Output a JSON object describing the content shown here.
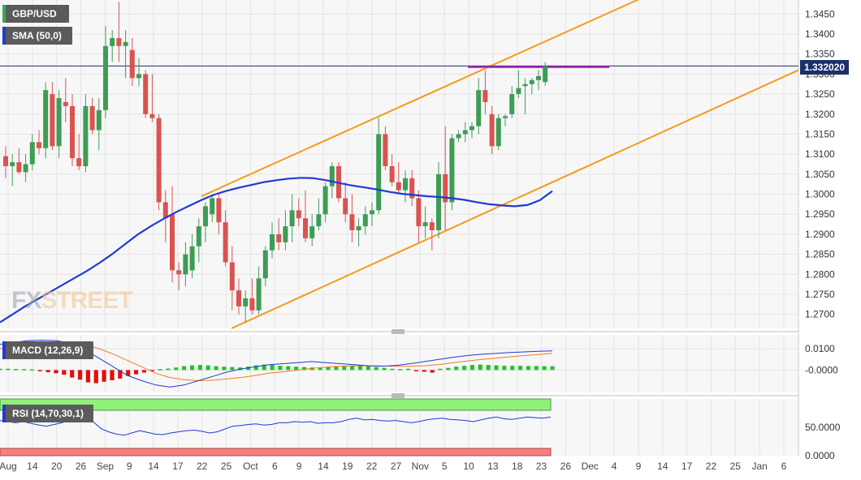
{
  "chart_data": {
    "type": "candlestick",
    "symbol": "GBP/USD",
    "indicators": {
      "sma_label": "SMA (50,0)",
      "macd_label": "MACD (12,26,9)",
      "rsi_label": "RSI (14,70,30,1)"
    },
    "last_price_label": "1.332020",
    "last_price": 1.33202,
    "price_axis": {
      "ylim": [
        1.2665,
        1.3485
      ],
      "ticks": [
        "1.3450",
        "1.3400",
        "1.3350",
        "1.3300",
        "1.3250",
        "1.3200",
        "1.3150",
        "1.3100",
        "1.3050",
        "1.3000",
        "1.2950",
        "1.2900",
        "1.2850",
        "1.2800",
        "1.2750",
        "1.2700"
      ]
    },
    "macd_axis": {
      "ticks": [
        "0.0100",
        "-0.0000"
      ]
    },
    "rsi_axis": {
      "ticks": [
        "50.0000",
        "0.0000"
      ]
    },
    "date_axis": {
      "labels": [
        "Aug",
        "14",
        "20",
        "26",
        "Sep",
        "9",
        "14",
        "17",
        "22",
        "25",
        "Oct",
        "6",
        "9",
        "14",
        "19",
        "22",
        "27",
        "Nov",
        "5",
        "10",
        "13",
        "18",
        "23",
        "26",
        "Dec",
        "4",
        "9",
        "14",
        "17",
        "22",
        "25",
        "Jan",
        "6"
      ]
    },
    "candles": [
      {
        "o": 1.3095,
        "h": 1.312,
        "l": 1.304,
        "c": 1.307
      },
      {
        "o": 1.307,
        "h": 1.31,
        "l": 1.302,
        "c": 1.308
      },
      {
        "o": 1.308,
        "h": 1.3115,
        "l": 1.305,
        "c": 1.3055
      },
      {
        "o": 1.3055,
        "h": 1.31,
        "l": 1.303,
        "c": 1.3075
      },
      {
        "o": 1.3075,
        "h": 1.315,
        "l": 1.306,
        "c": 1.313
      },
      {
        "o": 1.313,
        "h": 1.316,
        "l": 1.31,
        "c": 1.3115
      },
      {
        "o": 1.3115,
        "h": 1.328,
        "l": 1.309,
        "c": 1.326
      },
      {
        "o": 1.325,
        "h": 1.328,
        "l": 1.311,
        "c": 1.312
      },
      {
        "o": 1.312,
        "h": 1.326,
        "l": 1.309,
        "c": 1.324
      },
      {
        "o": 1.323,
        "h": 1.329,
        "l": 1.318,
        "c": 1.322
      },
      {
        "o": 1.322,
        "h": 1.325,
        "l": 1.307,
        "c": 1.309
      },
      {
        "o": 1.309,
        "h": 1.315,
        "l": 1.306,
        "c": 1.307
      },
      {
        "o": 1.307,
        "h": 1.325,
        "l": 1.3055,
        "c": 1.322
      },
      {
        "o": 1.322,
        "h": 1.324,
        "l": 1.315,
        "c": 1.316
      },
      {
        "o": 1.316,
        "h": 1.324,
        "l": 1.311,
        "c": 1.321
      },
      {
        "o": 1.321,
        "h": 1.342,
        "l": 1.319,
        "c": 1.337
      },
      {
        "o": 1.337,
        "h": 1.341,
        "l": 1.333,
        "c": 1.339
      },
      {
        "o": 1.339,
        "h": 1.348,
        "l": 1.333,
        "c": 1.337
      },
      {
        "o": 1.337,
        "h": 1.341,
        "l": 1.329,
        "c": 1.338
      },
      {
        "o": 1.336,
        "h": 1.339,
        "l": 1.327,
        "c": 1.329
      },
      {
        "o": 1.329,
        "h": 1.334,
        "l": 1.327,
        "c": 1.33
      },
      {
        "o": 1.33,
        "h": 1.331,
        "l": 1.319,
        "c": 1.32
      },
      {
        "o": 1.32,
        "h": 1.33,
        "l": 1.318,
        "c": 1.319
      },
      {
        "o": 1.319,
        "h": 1.32,
        "l": 1.296,
        "c": 1.298
      },
      {
        "o": 1.298,
        "h": 1.301,
        "l": 1.288,
        "c": 1.294
      },
      {
        "o": 1.295,
        "h": 1.302,
        "l": 1.278,
        "c": 1.281
      },
      {
        "o": 1.281,
        "h": 1.283,
        "l": 1.276,
        "c": 1.28
      },
      {
        "o": 1.28,
        "h": 1.288,
        "l": 1.277,
        "c": 1.285
      },
      {
        "o": 1.281,
        "h": 1.29,
        "l": 1.279,
        "c": 1.287
      },
      {
        "o": 1.287,
        "h": 1.294,
        "l": 1.283,
        "c": 1.292
      },
      {
        "o": 1.292,
        "h": 1.298,
        "l": 1.288,
        "c": 1.297
      },
      {
        "o": 1.295,
        "h": 1.3,
        "l": 1.293,
        "c": 1.299
      },
      {
        "o": 1.299,
        "h": 1.3,
        "l": 1.29,
        "c": 1.293
      },
      {
        "o": 1.293,
        "h": 1.296,
        "l": 1.282,
        "c": 1.283
      },
      {
        "o": 1.283,
        "h": 1.287,
        "l": 1.271,
        "c": 1.276
      },
      {
        "o": 1.276,
        "h": 1.279,
        "l": 1.27,
        "c": 1.272
      },
      {
        "o": 1.272,
        "h": 1.276,
        "l": 1.268,
        "c": 1.274
      },
      {
        "o": 1.274,
        "h": 1.279,
        "l": 1.27,
        "c": 1.271
      },
      {
        "o": 1.271,
        "h": 1.282,
        "l": 1.27,
        "c": 1.279
      },
      {
        "o": 1.279,
        "h": 1.287,
        "l": 1.277,
        "c": 1.286
      },
      {
        "o": 1.286,
        "h": 1.293,
        "l": 1.284,
        "c": 1.29
      },
      {
        "o": 1.29,
        "h": 1.294,
        "l": 1.286,
        "c": 1.288
      },
      {
        "o": 1.288,
        "h": 1.296,
        "l": 1.286,
        "c": 1.292
      },
      {
        "o": 1.292,
        "h": 1.3,
        "l": 1.288,
        "c": 1.296
      },
      {
        "o": 1.296,
        "h": 1.299,
        "l": 1.292,
        "c": 1.294
      },
      {
        "o": 1.294,
        "h": 1.301,
        "l": 1.288,
        "c": 1.289
      },
      {
        "o": 1.289,
        "h": 1.295,
        "l": 1.287,
        "c": 1.292
      },
      {
        "o": 1.292,
        "h": 1.299,
        "l": 1.291,
        "c": 1.295
      },
      {
        "o": 1.295,
        "h": 1.303,
        "l": 1.293,
        "c": 1.302
      },
      {
        "o": 1.302,
        "h": 1.308,
        "l": 1.299,
        "c": 1.307
      },
      {
        "o": 1.307,
        "h": 1.308,
        "l": 1.298,
        "c": 1.299
      },
      {
        "o": 1.299,
        "h": 1.303,
        "l": 1.293,
        "c": 1.295
      },
      {
        "o": 1.295,
        "h": 1.3,
        "l": 1.288,
        "c": 1.291
      },
      {
        "o": 1.291,
        "h": 1.294,
        "l": 1.287,
        "c": 1.292
      },
      {
        "o": 1.292,
        "h": 1.297,
        "l": 1.29,
        "c": 1.295
      },
      {
        "o": 1.295,
        "h": 1.298,
        "l": 1.292,
        "c": 1.296
      },
      {
        "o": 1.296,
        "h": 1.319,
        "l": 1.295,
        "c": 1.315
      },
      {
        "o": 1.315,
        "h": 1.317,
        "l": 1.306,
        "c": 1.307
      },
      {
        "o": 1.307,
        "h": 1.31,
        "l": 1.302,
        "c": 1.303
      },
      {
        "o": 1.303,
        "h": 1.308,
        "l": 1.3,
        "c": 1.301
      },
      {
        "o": 1.301,
        "h": 1.306,
        "l": 1.298,
        "c": 1.304
      },
      {
        "o": 1.304,
        "h": 1.306,
        "l": 1.297,
        "c": 1.299
      },
      {
        "o": 1.299,
        "h": 1.301,
        "l": 1.288,
        "c": 1.292
      },
      {
        "o": 1.292,
        "h": 1.297,
        "l": 1.289,
        "c": 1.293
      },
      {
        "o": 1.293,
        "h": 1.294,
        "l": 1.286,
        "c": 1.291
      },
      {
        "o": 1.291,
        "h": 1.308,
        "l": 1.289,
        "c": 1.305
      },
      {
        "o": 1.305,
        "h": 1.317,
        "l": 1.291,
        "c": 1.298
      },
      {
        "o": 1.298,
        "h": 1.315,
        "l": 1.296,
        "c": 1.314
      },
      {
        "o": 1.314,
        "h": 1.316,
        "l": 1.313,
        "c": 1.315
      },
      {
        "o": 1.315,
        "h": 1.318,
        "l": 1.313,
        "c": 1.316
      },
      {
        "o": 1.316,
        "h": 1.318,
        "l": 1.314,
        "c": 1.317
      },
      {
        "o": 1.317,
        "h": 1.329,
        "l": 1.315,
        "c": 1.326
      },
      {
        "o": 1.326,
        "h": 1.331,
        "l": 1.32,
        "c": 1.323
      },
      {
        "o": 1.32,
        "h": 1.322,
        "l": 1.31,
        "c": 1.312
      },
      {
        "o": 1.312,
        "h": 1.32,
        "l": 1.311,
        "c": 1.319
      },
      {
        "o": 1.319,
        "h": 1.32,
        "l": 1.317,
        "c": 1.3195
      },
      {
        "o": 1.32,
        "h": 1.327,
        "l": 1.319,
        "c": 1.325
      },
      {
        "o": 1.325,
        "h": 1.331,
        "l": 1.324,
        "c": 1.3265
      },
      {
        "o": 1.327,
        "h": 1.329,
        "l": 1.32,
        "c": 1.3275
      },
      {
        "o": 1.3275,
        "h": 1.329,
        "l": 1.325,
        "c": 1.3285
      },
      {
        "o": 1.3285,
        "h": 1.331,
        "l": 1.326,
        "c": 1.3295
      },
      {
        "o": 1.328,
        "h": 1.333,
        "l": 1.327,
        "c": 1.332
      }
    ],
    "sma": [
      1.268,
      1.27,
      1.272,
      1.2738,
      1.2756,
      1.2774,
      1.2792,
      1.281,
      1.283,
      1.2852,
      1.2876,
      1.29,
      1.292,
      1.2938,
      1.2955,
      1.297,
      1.2985,
      1.2998,
      1.3008,
      1.3016,
      1.3023,
      1.303,
      1.3035,
      1.3039,
      1.3041,
      1.304,
      1.3035,
      1.3028,
      1.3022,
      1.3017,
      1.3012,
      1.3006,
      1.3001,
      1.2998,
      1.2995,
      1.2993,
      1.299,
      1.2986,
      1.298,
      1.2975,
      1.2972,
      1.297,
      1.2973,
      1.2985,
      1.3008
    ],
    "channel_lines": [
      {
        "name": "upper",
        "points": [
          [
            1.2995,
            1.331
          ],
          [
            1.331,
            1.349
          ]
        ]
      },
      {
        "name": "lower",
        "points": [
          [
            1.2665,
            1.2965
          ],
          [
            1.2965,
            1.3315
          ]
        ]
      }
    ],
    "resistance_level": 1.3318,
    "macd": {
      "ylim": [
        -0.0105,
        0.0165
      ],
      "macd_line": [
        0.012,
        0.013,
        0.0138,
        0.014,
        0.0138,
        0.0125,
        0.0095,
        0.0055,
        0.0015,
        -0.0025,
        -0.005,
        -0.007,
        -0.008,
        -0.007,
        -0.005,
        -0.003,
        -0.001,
        0.0005,
        0.0015,
        0.0025,
        0.003,
        0.0035,
        0.004,
        0.0035,
        0.003,
        0.0025,
        0.002,
        0.0018,
        0.0022,
        0.003,
        0.004,
        0.005,
        0.006,
        0.0068,
        0.0074,
        0.0078,
        0.0082,
        0.0085,
        0.0088,
        0.009
      ],
      "signal_line": [
        0.01,
        0.011,
        0.012,
        0.0126,
        0.013,
        0.0128,
        0.0118,
        0.01,
        0.0075,
        0.0045,
        0.0015,
        -0.0015,
        -0.0035,
        -0.0045,
        -0.005,
        -0.0048,
        -0.0042,
        -0.0035,
        -0.0026,
        -0.0015,
        -0.0008,
        0.0,
        0.0008,
        0.0014,
        0.0018,
        0.002,
        0.002,
        0.0019,
        0.0018,
        0.0018,
        0.002,
        0.0026,
        0.0034,
        0.0042,
        0.005,
        0.0056,
        0.0062,
        0.0068,
        0.0073,
        0.0078
      ],
      "histogram": [
        0.0006,
        0.0006,
        0.0005,
        0.0004,
        0.0003,
        -0.0005,
        -0.001,
        -0.0015,
        -0.0022,
        -0.0035,
        -0.0045,
        -0.0058,
        -0.0062,
        -0.0055,
        -0.0048,
        -0.004,
        -0.0028,
        -0.002,
        -0.0012,
        -0.0006,
        0.0004,
        0.0007,
        0.0012,
        0.0018,
        0.0022,
        0.0024,
        0.0022,
        0.0018,
        0.0016,
        0.0014,
        0.0012,
        0.0016,
        0.0022,
        0.0026,
        0.0024,
        0.002,
        0.0018,
        0.0016,
        0.0014,
        0.0012,
        0.001,
        0.0014,
        0.0016,
        0.0018,
        0.002,
        0.0022,
        0.0018,
        0.0014,
        0.001,
        0.0006,
        0.0004,
        0.0006,
        -0.0004,
        -0.0008,
        -0.0012,
        0.0006,
        0.001,
        0.0016,
        0.002,
        0.0024,
        0.0026,
        0.0024,
        0.0022,
        0.002,
        0.002,
        0.002,
        0.0019,
        0.0019,
        0.0018,
        0.0018
      ]
    },
    "rsi": {
      "ylim": [
        0,
        100
      ],
      "overbought": 70,
      "oversold": 30,
      "values": [
        62,
        60,
        58,
        60,
        57,
        54,
        52,
        55,
        58,
        64,
        66,
        63,
        60,
        48,
        42,
        38,
        36,
        40,
        44,
        41,
        38,
        37,
        40,
        42,
        44,
        45,
        43,
        40,
        42,
        47,
        52,
        53,
        55,
        56,
        54,
        55,
        58,
        58,
        60,
        59,
        60,
        57,
        58,
        58,
        60,
        64,
        66,
        63,
        64,
        62,
        61,
        62,
        60,
        58,
        60,
        63,
        65,
        66,
        64,
        63,
        62,
        60,
        63,
        66,
        68,
        65,
        64,
        66,
        68,
        67,
        66,
        68
      ]
    }
  }
}
